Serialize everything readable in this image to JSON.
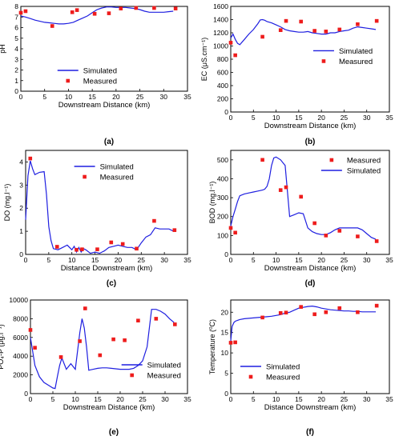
{
  "panels": [
    {
      "letter": "(a)",
      "xlabel": "Downstream Distance (km)",
      "ylabel": "pH",
      "xlim": [
        0,
        35
      ],
      "xticks": [
        0,
        5,
        10,
        15,
        20,
        25,
        30,
        35
      ],
      "ylim": [
        0,
        8
      ],
      "yticks": [
        0,
        1,
        2,
        3,
        4,
        5,
        6,
        7,
        8
      ],
      "legend_pos": "bottom-center",
      "simulated": {
        "name": "Simulated",
        "x": [
          0,
          1,
          2,
          3,
          4,
          5,
          6,
          7,
          8,
          9,
          10,
          11,
          12,
          13,
          14,
          15,
          16,
          17,
          18,
          19,
          20,
          21,
          22,
          23,
          24,
          25,
          26,
          27,
          28,
          29,
          30,
          31,
          32
        ],
        "y": [
          7.1,
          7.0,
          6.85,
          6.7,
          6.6,
          6.5,
          6.45,
          6.4,
          6.35,
          6.35,
          6.4,
          6.5,
          6.7,
          6.9,
          7.1,
          7.4,
          7.7,
          7.85,
          7.95,
          7.95,
          7.9,
          7.9,
          7.9,
          7.85,
          7.8,
          7.7,
          7.55,
          7.45,
          7.45,
          7.45,
          7.45,
          7.5,
          7.55
        ]
      },
      "measured": {
        "name": "Measured",
        "x": [
          0,
          1,
          6.6,
          10.8,
          11.8,
          15.5,
          18.5,
          21,
          24.2,
          28,
          32.5
        ],
        "y": [
          7.4,
          7.55,
          6.15,
          7.45,
          7.65,
          7.3,
          7.35,
          7.8,
          7.85,
          7.85,
          7.8
        ]
      }
    },
    {
      "letter": "(b)",
      "xlabel": "Downstream Distance (km)",
      "ylabel": "EC (μS.cm⁻¹)",
      "xlim": [
        0,
        35
      ],
      "xticks": [
        0,
        5,
        10,
        15,
        20,
        25,
        30,
        35
      ],
      "ylim": [
        0,
        1600
      ],
      "yticks": [
        0,
        200,
        400,
        600,
        800,
        1000,
        1200,
        1400,
        1600
      ],
      "legend_pos": "right-middle",
      "simulated": {
        "name": "Simulated",
        "x": [
          0,
          0.5,
          1,
          1.5,
          2,
          3,
          4,
          5,
          6,
          6.5,
          7,
          7.5,
          8,
          9,
          10,
          11,
          12,
          13,
          14,
          15,
          16,
          17,
          18,
          19,
          20,
          21,
          22,
          23,
          24,
          25,
          26,
          27,
          28,
          29,
          30,
          31,
          32
        ],
        "y": [
          1120,
          1180,
          1100,
          1040,
          1020,
          1100,
          1180,
          1250,
          1340,
          1395,
          1400,
          1390,
          1370,
          1350,
          1320,
          1290,
          1250,
          1230,
          1220,
          1210,
          1210,
          1220,
          1200,
          1190,
          1180,
          1180,
          1200,
          1200,
          1220,
          1230,
          1240,
          1270,
          1290,
          1280,
          1270,
          1260,
          1250
        ]
      },
      "measured": {
        "name": "Measured",
        "x": [
          0,
          1,
          7,
          11,
          12.2,
          15.5,
          18.5,
          21,
          24,
          28,
          32.2
        ],
        "y": [
          1050,
          860,
          1140,
          1240,
          1380,
          1370,
          1230,
          1220,
          1250,
          1330,
          1380
        ]
      }
    },
    {
      "letter": "(c)",
      "xlabel": "Distance Downstream (km)",
      "ylabel": "DO (mg.l⁻¹)",
      "xlim": [
        0,
        35
      ],
      "xticks": [
        0,
        5,
        10,
        15,
        20,
        25,
        30,
        35
      ],
      "ylim": [
        0,
        4.5
      ],
      "yticks": [
        0,
        1,
        2,
        3,
        4
      ],
      "legend_pos": "top-center",
      "simulated": {
        "name": "Simulated",
        "x": [
          0,
          0.5,
          1,
          1.5,
          2,
          3,
          4,
          4.5,
          5,
          5.5,
          6,
          7,
          8,
          9,
          10,
          10.5,
          11,
          11.5,
          12,
          12.5,
          13,
          14,
          15,
          16,
          17,
          18,
          19,
          20,
          21,
          22,
          23,
          24,
          25,
          26,
          27,
          28,
          29,
          30,
          31,
          32
        ],
        "y": [
          1.5,
          3.4,
          4.05,
          3.7,
          3.45,
          3.55,
          3.58,
          2.6,
          1.2,
          0.6,
          0.25,
          0.2,
          0.3,
          0.4,
          0.2,
          0.35,
          0.1,
          0.3,
          0.1,
          0.25,
          0.2,
          0.05,
          0.1,
          0.05,
          0.15,
          0.3,
          0.35,
          0.4,
          0.35,
          0.3,
          0.3,
          0.2,
          0.5,
          0.75,
          0.85,
          1.15,
          1.1,
          1.1,
          1.1,
          1.0
        ]
      },
      "measured": {
        "name": "Measured",
        "x": [
          1,
          6.8,
          11,
          12.2,
          15.5,
          18.5,
          21,
          24,
          27.8,
          32.2
        ],
        "y": [
          4.15,
          0.33,
          0.2,
          0.22,
          0.22,
          0.52,
          0.45,
          0.25,
          1.45,
          1.05
        ]
      }
    },
    {
      "letter": "(d)",
      "xlabel": "Downstream Distance (km)",
      "ylabel": "BOD (mg.l⁻¹)",
      "xlim": [
        0,
        35
      ],
      "xticks": [
        0,
        5,
        10,
        15,
        20,
        25,
        30,
        35
      ],
      "ylim": [
        0,
        550
      ],
      "yticks": [
        0,
        100,
        200,
        300,
        400,
        500
      ],
      "legend_pos": "top-right",
      "legend_order": [
        "measured",
        "simulated"
      ],
      "simulated": {
        "name": "Simulated",
        "x": [
          0,
          0.5,
          1,
          1.5,
          2,
          3,
          4,
          5,
          6,
          7,
          7.5,
          8,
          8.5,
          9,
          9.5,
          10,
          11,
          12,
          13,
          14,
          15,
          16,
          17,
          18,
          19,
          20,
          21,
          22,
          23,
          24,
          25,
          26,
          27,
          28,
          29,
          30,
          31,
          32
        ],
        "y": [
          150,
          200,
          240,
          280,
          310,
          320,
          325,
          330,
          335,
          340,
          345,
          360,
          400,
          470,
          510,
          515,
          500,
          470,
          200,
          210,
          220,
          215,
          140,
          120,
          110,
          105,
          105,
          115,
          130,
          140,
          140,
          140,
          140,
          140,
          130,
          110,
          90,
          80
        ]
      },
      "measured": {
        "name": "Measured",
        "x": [
          0,
          1,
          7,
          11,
          12.2,
          15.5,
          18.5,
          21,
          24,
          28,
          32.2
        ],
        "y": [
          140,
          115,
          500,
          340,
          355,
          305,
          165,
          100,
          125,
          95,
          70
        ]
      }
    },
    {
      "letter": "(e)",
      "xlabel": "Downstream Distance (km)",
      "ylabel": "PO₄-P (μg.l⁻¹)",
      "xlim": [
        0,
        35
      ],
      "xticks": [
        0,
        5,
        10,
        15,
        20,
        25,
        30,
        35
      ],
      "ylim": [
        0,
        10000
      ],
      "yticks": [
        0,
        2000,
        4000,
        6000,
        8000,
        10000
      ],
      "legend_pos": "bottom-right",
      "simulated": {
        "name": "Simulated",
        "x": [
          0,
          1,
          2,
          3,
          4,
          5,
          5.5,
          6,
          6.5,
          7,
          8,
          9,
          10,
          11,
          11.5,
          12,
          12.5,
          13,
          14,
          15,
          16,
          17,
          18,
          19,
          20,
          21,
          22,
          23,
          24,
          25,
          26,
          27,
          28,
          29,
          30,
          31,
          32
        ],
        "y": [
          6000,
          3000,
          1800,
          1200,
          900,
          600,
          550,
          1800,
          3000,
          3800,
          2600,
          3200,
          2600,
          6500,
          8000,
          7000,
          5000,
          2500,
          2600,
          2700,
          2750,
          2750,
          2700,
          2650,
          2600,
          2600,
          2600,
          2700,
          3000,
          3500,
          5000,
          9000,
          9000,
          8800,
          8500,
          8000,
          7600
        ]
      },
      "measured": {
        "name": "Measured",
        "x": [
          0,
          1,
          6.8,
          11,
          12.2,
          15.5,
          18.5,
          21,
          24,
          28,
          32.2
        ],
        "y": [
          6800,
          4900,
          3900,
          5600,
          9100,
          4100,
          5800,
          5700,
          7800,
          8000,
          7400
        ]
      }
    },
    {
      "letter": "(f)",
      "xlabel": "Distance Downstream (km)",
      "ylabel": "Temperature (⁰C)",
      "xlim": [
        0,
        35
      ],
      "xticks": [
        0,
        5,
        10,
        15,
        20,
        25,
        30,
        35
      ],
      "ylim": [
        0,
        23
      ],
      "yticks": [
        0,
        5,
        10,
        15,
        20
      ],
      "legend_pos": "bottom-center",
      "simulated": {
        "name": "Simulated",
        "x": [
          0,
          0.3,
          0.7,
          1,
          1.5,
          2,
          3,
          4,
          5,
          6,
          7,
          8,
          9,
          10,
          11,
          12,
          13,
          14,
          15,
          16,
          17,
          18,
          19,
          20,
          21,
          22,
          23,
          24,
          25,
          26,
          27,
          28,
          29,
          30,
          31,
          32
        ],
        "y": [
          13,
          16.5,
          17.5,
          17.8,
          18,
          18.2,
          18.4,
          18.5,
          18.6,
          18.7,
          18.8,
          18.9,
          19.0,
          19.2,
          19.4,
          19.8,
          20.0,
          20.5,
          21.0,
          21.2,
          21.4,
          21.5,
          21.3,
          21.0,
          20.8,
          20.6,
          20.5,
          20.4,
          20.3,
          20.3,
          20.2,
          20.2,
          20.1,
          20.1,
          20.1,
          20.1
        ]
      },
      "measured": {
        "name": "Measured",
        "x": [
          0,
          1,
          7,
          11,
          12.2,
          15.5,
          18.5,
          21,
          24,
          28,
          32.2
        ],
        "y": [
          12.5,
          12.6,
          18.7,
          19.8,
          19.9,
          21.3,
          19.5,
          20.0,
          21.0,
          20.0,
          21.6
        ]
      }
    }
  ],
  "colors": {
    "simulated": "#1f1fe0",
    "measured": "#ee1c1c"
  }
}
